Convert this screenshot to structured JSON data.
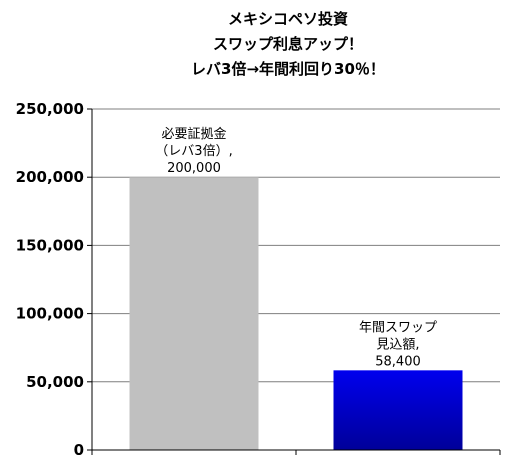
{
  "chart_data": {
    "type": "bar",
    "title_lines": [
      "メキシコペソ投資",
      "スワップ利息アップ！",
      "レバ3倍→年間利回り30％！"
    ],
    "categories": [
      "",
      ""
    ],
    "values": [
      200000,
      58400
    ],
    "data_labels": [
      [
        "必要証拠金",
        "（レバ3倍）,",
        "200,000"
      ],
      [
        "年間スワップ",
        "見込額,",
        "58,400"
      ]
    ],
    "bar_colors": [
      "#c0c0c0",
      "#000099"
    ],
    "ylim": [
      0,
      250000
    ],
    "yticks": [
      0,
      50000,
      100000,
      150000,
      200000,
      250000
    ],
    "ytick_labels": [
      "0",
      "50,000",
      "100,000",
      "150,000",
      "200,000",
      "250,000"
    ],
    "xlabel": "",
    "ylabel": "",
    "grid": true,
    "gridline_color": "#7f7f7f"
  }
}
